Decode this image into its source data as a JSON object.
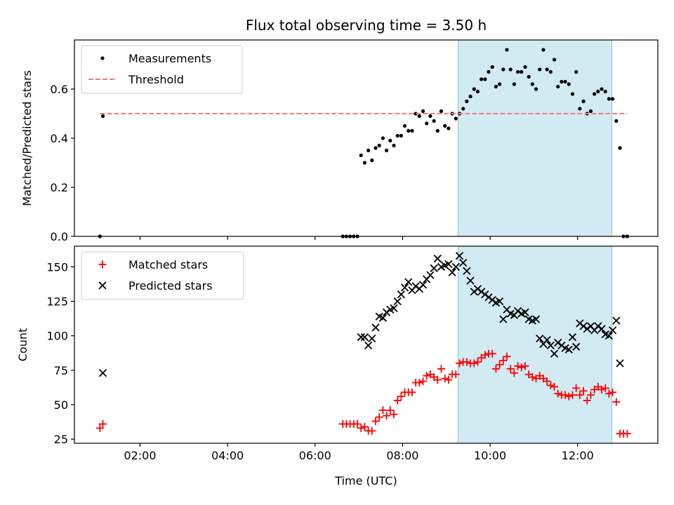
{
  "chart_data": [
    {
      "type": "scatter",
      "title": "Flux total observing time = 3.50 h",
      "xlabel": "",
      "ylabel": "Matched/Predicted stars",
      "xlim": [
        "00:30",
        "13:50"
      ],
      "ylim": [
        0,
        0.8
      ],
      "yticks": [
        "0.0",
        "0.2",
        "0.4",
        "0.6"
      ],
      "xticks": [
        "02:00",
        "04:00",
        "06:00",
        "08:00",
        "10:00",
        "12:00"
      ],
      "shaded_region": [
        "09:16",
        "12:47"
      ],
      "shade_color": "#add8e6",
      "legend": "upper-left",
      "series": [
        {
          "name": "Measurements",
          "marker": "dot",
          "color": "#000000",
          "points": [
            [
              "01:05",
              0.0
            ],
            [
              "01:09",
              0.49
            ],
            [
              "06:38",
              0.0
            ],
            [
              "06:43",
              0.0
            ],
            [
              "06:48",
              0.0
            ],
            [
              "06:53",
              0.0
            ],
            [
              "06:58",
              0.0
            ],
            [
              "07:03",
              0.33
            ],
            [
              "07:08",
              0.3
            ],
            [
              "07:13",
              0.35
            ],
            [
              "07:18",
              0.31
            ],
            [
              "07:23",
              0.36
            ],
            [
              "07:28",
              0.37
            ],
            [
              "07:33",
              0.4
            ],
            [
              "07:38",
              0.35
            ],
            [
              "07:43",
              0.39
            ],
            [
              "07:48",
              0.37
            ],
            [
              "07:53",
              0.41
            ],
            [
              "07:58",
              0.41
            ],
            [
              "08:03",
              0.45
            ],
            [
              "08:08",
              0.43
            ],
            [
              "08:13",
              0.43
            ],
            [
              "08:18",
              0.5
            ],
            [
              "08:23",
              0.49
            ],
            [
              "08:28",
              0.51
            ],
            [
              "08:33",
              0.46
            ],
            [
              "08:38",
              0.49
            ],
            [
              "08:43",
              0.47
            ],
            [
              "08:48",
              0.43
            ],
            [
              "08:53",
              0.51
            ],
            [
              "08:58",
              0.45
            ],
            [
              "09:03",
              0.44
            ],
            [
              "09:08",
              0.5
            ],
            [
              "09:13",
              0.48
            ],
            [
              "09:18",
              0.5
            ],
            [
              "09:23",
              0.52
            ],
            [
              "09:28",
              0.55
            ],
            [
              "09:33",
              0.57
            ],
            [
              "09:38",
              0.6
            ],
            [
              "09:43",
              0.59
            ],
            [
              "09:48",
              0.64
            ],
            [
              "09:53",
              0.64
            ],
            [
              "09:58",
              0.67
            ],
            [
              "10:03",
              0.69
            ],
            [
              "10:08",
              0.61
            ],
            [
              "10:13",
              0.62
            ],
            [
              "10:18",
              0.68
            ],
            [
              "10:23",
              0.76
            ],
            [
              "10:28",
              0.68
            ],
            [
              "10:33",
              0.62
            ],
            [
              "10:38",
              0.67
            ],
            [
              "10:43",
              0.67
            ],
            [
              "10:48",
              0.69
            ],
            [
              "10:53",
              0.65
            ],
            [
              "10:58",
              0.62
            ],
            [
              "11:03",
              0.6
            ],
            [
              "11:08",
              0.68
            ],
            [
              "11:13",
              0.76
            ],
            [
              "11:18",
              0.68
            ],
            [
              "11:23",
              0.67
            ],
            [
              "11:28",
              0.72
            ],
            [
              "11:33",
              0.61
            ],
            [
              "11:38",
              0.63
            ],
            [
              "11:43",
              0.63
            ],
            [
              "11:48",
              0.62
            ],
            [
              "11:53",
              0.58
            ],
            [
              "11:58",
              0.67
            ],
            [
              "12:03",
              0.52
            ],
            [
              "12:08",
              0.55
            ],
            [
              "12:13",
              0.5
            ],
            [
              "12:18",
              0.51
            ],
            [
              "12:23",
              0.58
            ],
            [
              "12:28",
              0.59
            ],
            [
              "12:33",
              0.6
            ],
            [
              "12:38",
              0.59
            ],
            [
              "12:43",
              0.56
            ],
            [
              "12:48",
              0.56
            ],
            [
              "12:53",
              0.47
            ],
            [
              "12:58",
              0.36
            ],
            [
              "13:03",
              0.0
            ],
            [
              "13:08",
              0.0
            ]
          ]
        },
        {
          "name": "Threshold",
          "marker": "dashed-line",
          "color": "#f08080",
          "points": [
            [
              "01:05",
              0.5
            ],
            [
              "13:08",
              0.5
            ]
          ]
        }
      ]
    },
    {
      "type": "scatter",
      "title": "",
      "xlabel": "Time (UTC)",
      "ylabel": "Count",
      "xlim": [
        "00:30",
        "13:50"
      ],
      "ylim": [
        22,
        165
      ],
      "yticks": [
        "25",
        "50",
        "75",
        "100",
        "125",
        "150"
      ],
      "xticks": [
        "02:00",
        "04:00",
        "06:00",
        "08:00",
        "10:00",
        "12:00"
      ],
      "shaded_region": [
        "09:16",
        "12:47"
      ],
      "shade_color": "#add8e6",
      "legend": "upper-left",
      "series": [
        {
          "name": "Matched stars",
          "marker": "plus",
          "color": "#ff0000",
          "points": [
            [
              "01:05",
              33
            ],
            [
              "01:09",
              36
            ],
            [
              "06:38",
              36
            ],
            [
              "06:43",
              36
            ],
            [
              "06:48",
              36
            ],
            [
              "06:53",
              36
            ],
            [
              "06:58",
              36
            ],
            [
              "07:03",
              33
            ],
            [
              "07:08",
              34
            ],
            [
              "07:13",
              31
            ],
            [
              "07:18",
              31
            ],
            [
              "07:23",
              38
            ],
            [
              "07:28",
              41
            ],
            [
              "07:33",
              46
            ],
            [
              "07:38",
              42
            ],
            [
              "07:43",
              46
            ],
            [
              "07:48",
              43
            ],
            [
              "07:53",
              53
            ],
            [
              "07:58",
              56
            ],
            [
              "08:03",
              59
            ],
            [
              "08:08",
              59
            ],
            [
              "08:13",
              59
            ],
            [
              "08:18",
              66
            ],
            [
              "08:23",
              66
            ],
            [
              "08:28",
              67
            ],
            [
              "08:33",
              71
            ],
            [
              "08:38",
              72
            ],
            [
              "08:43",
              70
            ],
            [
              "08:48",
              68
            ],
            [
              "08:53",
              76
            ],
            [
              "08:58",
              69
            ],
            [
              "09:03",
              68
            ],
            [
              "09:08",
              72
            ],
            [
              "09:13",
              72
            ],
            [
              "09:18",
              80
            ],
            [
              "09:23",
              81
            ],
            [
              "09:28",
              81
            ],
            [
              "09:33",
              80
            ],
            [
              "09:38",
              80
            ],
            [
              "09:43",
              81
            ],
            [
              "09:48",
              84
            ],
            [
              "09:53",
              86
            ],
            [
              "09:58",
              87
            ],
            [
              "10:03",
              87
            ],
            [
              "10:08",
              76
            ],
            [
              "10:13",
              79
            ],
            [
              "10:18",
              82
            ],
            [
              "10:23",
              85
            ],
            [
              "10:28",
              76
            ],
            [
              "10:33",
              73
            ],
            [
              "10:38",
              78
            ],
            [
              "10:43",
              77
            ],
            [
              "10:48",
              78
            ],
            [
              "10:53",
              72
            ],
            [
              "10:58",
              70
            ],
            [
              "11:03",
              69
            ],
            [
              "11:08",
              71
            ],
            [
              "11:13",
              69
            ],
            [
              "11:18",
              67
            ],
            [
              "11:23",
              64
            ],
            [
              "11:28",
              63
            ],
            [
              "11:33",
              58
            ],
            [
              "11:38",
              57
            ],
            [
              "11:43",
              57
            ],
            [
              "11:48",
              56
            ],
            [
              "11:53",
              57
            ],
            [
              "11:58",
              62
            ],
            [
              "12:03",
              57
            ],
            [
              "12:08",
              60
            ],
            [
              "12:13",
              53
            ],
            [
              "12:18",
              57
            ],
            [
              "12:23",
              61
            ],
            [
              "12:28",
              63
            ],
            [
              "12:33",
              61
            ],
            [
              "12:38",
              62
            ],
            [
              "12:43",
              58
            ],
            [
              "12:48",
              59
            ],
            [
              "12:53",
              52
            ],
            [
              "12:58",
              29
            ],
            [
              "13:03",
              29
            ],
            [
              "13:08",
              29
            ]
          ]
        },
        {
          "name": "Predicted stars",
          "marker": "x",
          "color": "#000000",
          "points": [
            [
              "01:09",
              73
            ],
            [
              "07:03",
              99
            ],
            [
              "07:08",
              99
            ],
            [
              "07:13",
              93
            ],
            [
              "07:18",
              98
            ],
            [
              "07:23",
              106
            ],
            [
              "07:28",
              114
            ],
            [
              "07:33",
              113
            ],
            [
              "07:38",
              117
            ],
            [
              "07:43",
              119
            ],
            [
              "07:48",
              120
            ],
            [
              "07:53",
              125
            ],
            [
              "07:58",
              130
            ],
            [
              "08:03",
              135
            ],
            [
              "08:08",
              139
            ],
            [
              "08:13",
              133
            ],
            [
              "08:18",
              136
            ],
            [
              "08:23",
              134
            ],
            [
              "08:28",
              137
            ],
            [
              "08:33",
              141
            ],
            [
              "08:38",
              144
            ],
            [
              "08:43",
              149
            ],
            [
              "08:48",
              156
            ],
            [
              "08:53",
              150
            ],
            [
              "08:58",
              151
            ],
            [
              "09:03",
              152
            ],
            [
              "09:08",
              146
            ],
            [
              "09:13",
              150
            ],
            [
              "09:18",
              158
            ],
            [
              "09:23",
              153
            ],
            [
              "09:28",
              147
            ],
            [
              "09:33",
              140
            ],
            [
              "09:38",
              132
            ],
            [
              "09:43",
              134
            ],
            [
              "09:48",
              132
            ],
            [
              "09:53",
              130
            ],
            [
              "09:58",
              128
            ],
            [
              "10:03",
              126
            ],
            [
              "10:08",
              124
            ],
            [
              "10:13",
              125
            ],
            [
              "10:18",
              112
            ],
            [
              "10:23",
              119
            ],
            [
              "10:28",
              116
            ],
            [
              "10:33",
              115
            ],
            [
              "10:38",
              118
            ],
            [
              "10:43",
              116
            ],
            [
              "10:48",
              117
            ],
            [
              "10:53",
              112
            ],
            [
              "10:58",
              111
            ],
            [
              "11:03",
              112
            ],
            [
              "11:08",
              98
            ],
            [
              "11:13",
              94
            ],
            [
              "11:18",
              97
            ],
            [
              "11:23",
              93
            ],
            [
              "11:28",
              87
            ],
            [
              "11:33",
              95
            ],
            [
              "11:38",
              93
            ],
            [
              "11:43",
              91
            ],
            [
              "11:48",
              90
            ],
            [
              "11:53",
              99
            ],
            [
              "11:58",
              92
            ],
            [
              "12:03",
              109
            ],
            [
              "12:08",
              107
            ],
            [
              "12:13",
              105
            ],
            [
              "12:18",
              107
            ],
            [
              "12:23",
              104
            ],
            [
              "12:28",
              107
            ],
            [
              "12:33",
              105
            ],
            [
              "12:38",
              101
            ],
            [
              "12:43",
              100
            ],
            [
              "12:48",
              104
            ],
            [
              "12:53",
              111
            ],
            [
              "12:58",
              80
            ]
          ]
        }
      ]
    }
  ]
}
